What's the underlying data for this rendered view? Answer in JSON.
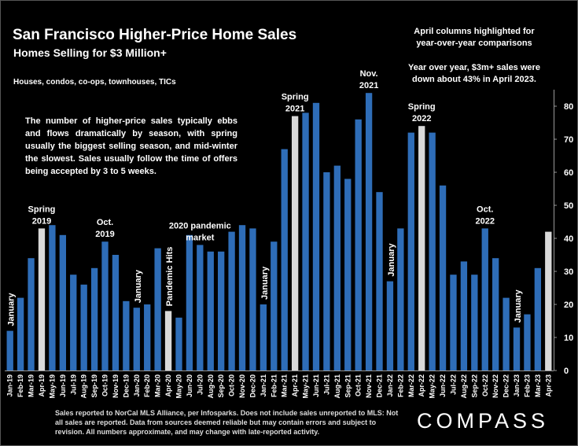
{
  "header": {
    "title": "San Francisco Higher-Price Home Sales",
    "subtitle": "Homes Selling for  $3 Million+",
    "property_types": "Houses, condos, co-ops, townhouses, TICs"
  },
  "notes": {
    "highlight_line1": "April columns highlighted for",
    "highlight_line2": "year-over-year comparisons",
    "yoy_line1": "Year over year, $3m+ sales were",
    "yoy_line2": "down about 43% in April 2023.",
    "paragraph": "The number of higher-price sales typically ebbs and flows dramatically by season, with spring usually the biggest selling season, and mid-winter the slowest. Sales usually follow the time of offers being accepted by 3 to 5 weeks."
  },
  "footer": {
    "source": "Sales reported to NorCal MLS Alliance, per Infosparks. Does not include sales unreported to MLS: Not all sales are reported. Data from sources deemed reliable but may contain errors and subject to revision.  All numbers approximate, and may change with late-reported activity."
  },
  "brand": {
    "logo": "COMPASS"
  },
  "colors": {
    "bar": "#2e6db8",
    "highlight": "#d9d9d9",
    "background": "#000000"
  },
  "chart_data": {
    "type": "bar",
    "categories": [
      "Jan-19",
      "Feb-19",
      "Mar-19",
      "Apr-19",
      "May-19",
      "Jun-19",
      "Jul-19",
      "Aug-19",
      "Sep-19",
      "Oct-19",
      "Nov-19",
      "Dec-19",
      "Jan-20",
      "Feb-20",
      "Mar-20",
      "Apr-20",
      "May-20",
      "Jun-20",
      "Jul-20",
      "Aug-20",
      "Sep-20",
      "Oct-20",
      "Nov-20",
      "Dec-20",
      "Jan-21",
      "Feb-21",
      "Mar-21",
      "Apr-21",
      "May-21",
      "Jun-21",
      "Jul-21",
      "Aug-21",
      "Sep-21",
      "Oct-21",
      "Nov-21",
      "Dec-21",
      "Jan-22",
      "Feb-22",
      "Mar-22",
      "Apr-22",
      "May-22",
      "Jun-22",
      "Jul-22",
      "Aug-22",
      "Sep-22",
      "Oct-22",
      "Nov-22",
      "Dec-22",
      "Jan-23",
      "Feb-23",
      "Mar-23",
      "Apr-23"
    ],
    "values": [
      12,
      22,
      34,
      43,
      44,
      41,
      29,
      26,
      31,
      39,
      35,
      21,
      19,
      20,
      37,
      18,
      16,
      41,
      38,
      36,
      36,
      42,
      44,
      43,
      20,
      39,
      67,
      77,
      78,
      81,
      60,
      62,
      58,
      76,
      84,
      54,
      27,
      43,
      72,
      74,
      72,
      56,
      29,
      33,
      29,
      43,
      34,
      22,
      13,
      17,
      31,
      42
    ],
    "highlighted": [
      "Apr-19",
      "Apr-20",
      "Apr-21",
      "Apr-22",
      "Apr-23"
    ],
    "ylim": [
      0,
      85
    ],
    "yticks": [
      0,
      10,
      20,
      30,
      40,
      50,
      60,
      70,
      80
    ],
    "y_axis_side": "right",
    "grid": false,
    "annotations": [
      {
        "category": "Jan-19",
        "text": "January",
        "style": "vertical"
      },
      {
        "category": "Apr-19",
        "text": [
          "Spring",
          "2019"
        ],
        "style": "above"
      },
      {
        "category": "Oct-19",
        "text": [
          "Oct.",
          "2019"
        ],
        "style": "above"
      },
      {
        "category": "Jan-20",
        "text": "January",
        "style": "vertical"
      },
      {
        "category": "Apr-20",
        "text": "Pandemic Hits",
        "style": "vertical"
      },
      {
        "category": "Jul-20",
        "text": [
          "2020 pandemic",
          "market"
        ],
        "style": "above"
      },
      {
        "category": "Jan-21",
        "text": "January",
        "style": "vertical"
      },
      {
        "category": "Apr-21",
        "text": [
          "Spring",
          "2021"
        ],
        "style": "above"
      },
      {
        "category": "Nov-21",
        "text": [
          "Nov.",
          "2021"
        ],
        "style": "above"
      },
      {
        "category": "Jan-22",
        "text": "January",
        "style": "vertical"
      },
      {
        "category": "Apr-22",
        "text": [
          "Spring",
          "2022"
        ],
        "style": "above"
      },
      {
        "category": "Oct-22",
        "text": [
          "Oct.",
          "2022"
        ],
        "style": "above"
      },
      {
        "category": "Jan-23",
        "text": "January",
        "style": "vertical"
      }
    ]
  }
}
